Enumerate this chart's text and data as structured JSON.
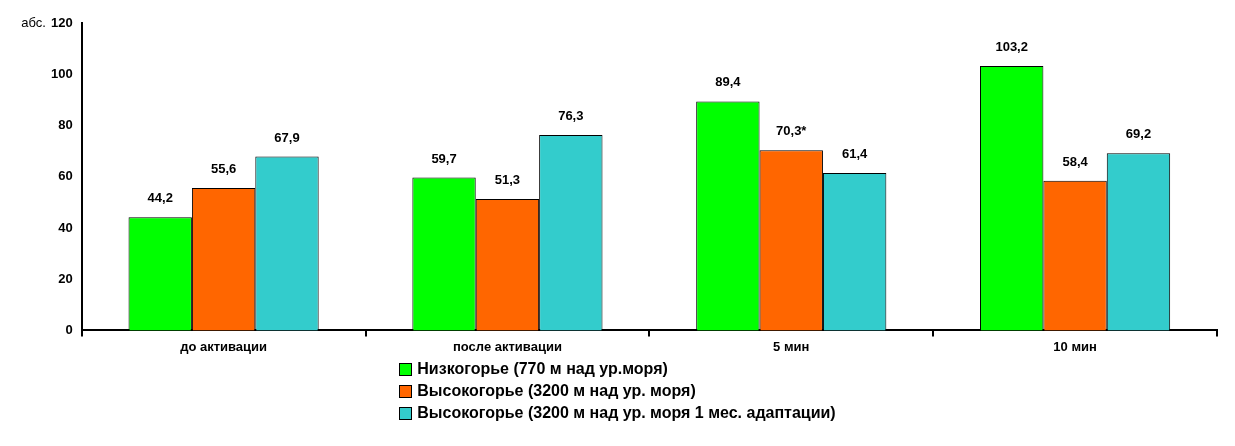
{
  "chart_data": {
    "type": "bar",
    "ylabel": "абс.",
    "categories": [
      "до активации",
      "после активации",
      "5 мин",
      "10 мин"
    ],
    "series": [
      {
        "name": "Низкогорье (770 м над ур.моря)",
        "color": "#00ff00",
        "values": [
          44.2,
          59.7,
          89.4,
          103.2
        ],
        "value_labels": [
          "44,2",
          "59,7",
          "89,4",
          "103,2"
        ]
      },
      {
        "name": "Высокогорье (3200 м над ур. моря)",
        "color": "#ff6600",
        "values": [
          55.6,
          51.3,
          70.3,
          58.4
        ],
        "value_labels": [
          "55,6",
          "51,3",
          "70,3*",
          "58,4"
        ]
      },
      {
        "name": "Высокогорье (3200 м над ур. моря 1 мес. адаптации)",
        "color": "#33cccc",
        "values": [
          67.9,
          76.3,
          61.4,
          69.2
        ],
        "value_labels": [
          "67,9",
          "76,3",
          "61,4",
          "69,2"
        ]
      }
    ],
    "ylim": [
      0,
      120
    ],
    "yticks": [
      0,
      20,
      40,
      60,
      80,
      100,
      120
    ],
    "grid": false,
    "legend": "bottom"
  }
}
